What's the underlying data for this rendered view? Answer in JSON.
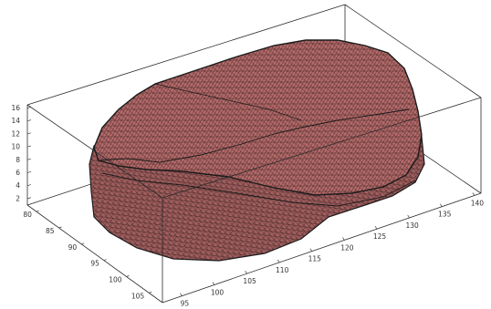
{
  "chart_data": {
    "type": "surface3d",
    "title": "",
    "xlabel": "",
    "ylabel": "",
    "zlabel": "",
    "grid": false,
    "x_ticks": [
      95,
      100,
      105,
      110,
      115,
      120,
      125,
      130,
      135,
      140
    ],
    "y_ticks": [
      80,
      85,
      90,
      95,
      100,
      105
    ],
    "z_ticks": [
      2,
      4,
      6,
      8,
      10,
      12,
      14,
      16
    ],
    "xlim": [
      92,
      141
    ],
    "ylim": [
      78,
      108
    ],
    "zlim": [
      1,
      16.5
    ],
    "surface": {
      "name": "",
      "color": "#b46a6a",
      "edge_color": "#1a1a1a"
    }
  },
  "colors": {
    "face": "#b46a6a",
    "face_shade": "#9a5656",
    "edge": "#1a1a1a",
    "box": "#2b2b2b"
  }
}
